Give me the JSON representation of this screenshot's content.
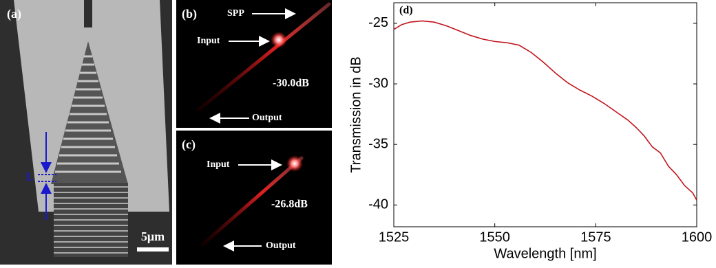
{
  "panel_a": {
    "label": "(a)",
    "length_label": "L",
    "scale_label": "5μm"
  },
  "panel_b": {
    "label": "(b)",
    "spp_label": "SPP",
    "input_label": "Input",
    "loss_label": "-30.0dB",
    "output_label": "Output"
  },
  "panel_c": {
    "label": "(c)",
    "input_label": "Input",
    "loss_label": "-26.8dB",
    "output_label": "Output"
  },
  "chart_data": {
    "type": "line",
    "panel_label": "(d)",
    "x_label": "Wavelength [nm]",
    "y_label": "Transmission in dB",
    "x": [
      1525,
      1527,
      1529,
      1532,
      1535,
      1538,
      1541,
      1544,
      1547,
      1550,
      1553,
      1556,
      1559,
      1562,
      1565,
      1568,
      1571,
      1574,
      1577,
      1580,
      1583,
      1585,
      1587,
      1589,
      1591,
      1593,
      1595,
      1597,
      1599,
      1600
    ],
    "series": [
      {
        "color": "#c0141c",
        "values": [
          -25.5,
          -25.1,
          -24.9,
          -24.8,
          -24.9,
          -25.2,
          -25.6,
          -26.0,
          -26.3,
          -26.5,
          -26.6,
          -26.8,
          -27.4,
          -28.2,
          -29.1,
          -29.9,
          -30.5,
          -31.0,
          -31.6,
          -32.3,
          -33.0,
          -33.6,
          -34.3,
          -35.2,
          -35.7,
          -36.8,
          -37.5,
          -38.4,
          -39.0,
          -39.6
        ]
      }
    ],
    "xlim": [
      1525,
      1600
    ],
    "ylim": [
      -41.8,
      -23.3
    ],
    "xticks": [
      1525,
      1550,
      1575,
      1600
    ],
    "yticks": [
      -40,
      -35,
      -30,
      -25
    ]
  }
}
